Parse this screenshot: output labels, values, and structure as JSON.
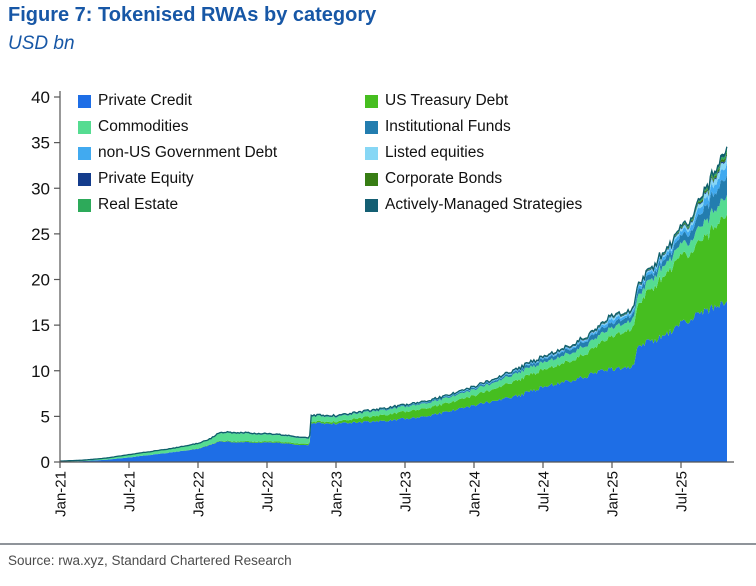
{
  "header": {
    "title": "Figure 7: Tokenised RWAs by category",
    "subtitle": "USD bn"
  },
  "footer": {
    "source": "Source: rwa.xyz, Standard Chartered Research"
  },
  "chart_data": {
    "type": "area",
    "stacked": true,
    "title": "Figure 7: Tokenised RWAs by category",
    "ylabel": "USD bn",
    "ylim": [
      0,
      40
    ],
    "yticks": [
      0,
      5,
      10,
      15,
      20,
      25,
      30,
      35,
      40
    ],
    "grid": false,
    "legend_position": "top-left-inside",
    "x_unit": "months_since_Jan-2021",
    "xtick_positions": [
      0,
      6,
      12,
      18,
      24,
      30,
      36,
      42,
      48,
      54
    ],
    "xtick_labels": [
      "Jan-21",
      "Jul-21",
      "Jan-22",
      "Jul-22",
      "Jan-23",
      "Jul-23",
      "Jan-24",
      "Jul-24",
      "Jan-25",
      "Jul-25"
    ],
    "x": [
      0,
      2,
      4,
      6,
      8,
      10,
      12,
      13,
      14,
      15,
      16,
      17,
      18,
      19,
      20,
      21,
      21.7,
      21.8,
      22,
      24,
      25,
      26,
      27,
      28,
      29,
      30,
      31,
      32,
      33,
      34,
      35,
      36,
      37,
      38,
      39,
      40,
      41,
      42,
      43,
      44,
      45,
      46,
      47,
      48,
      49,
      50,
      50.1,
      51,
      52,
      53,
      54,
      54.5,
      55,
      55.5,
      56,
      56.5,
      57,
      57.5,
      58
    ],
    "series": [
      {
        "name": "Private Credit",
        "color": "#1E6EE6",
        "values": [
          0.05,
          0.1,
          0.25,
          0.5,
          0.8,
          1.1,
          1.45,
          1.85,
          2.3,
          2.15,
          2.2,
          2.1,
          2.15,
          2.1,
          2.0,
          1.85,
          1.8,
          4.35,
          4.3,
          4.2,
          4.3,
          4.35,
          4.4,
          4.5,
          4.6,
          4.75,
          4.9,
          5.1,
          5.3,
          5.6,
          5.9,
          6.2,
          6.5,
          6.8,
          7.0,
          7.3,
          7.8,
          8.2,
          8.5,
          8.8,
          9.1,
          9.5,
          9.9,
          10.2,
          10.3,
          10.4,
          12.8,
          13.1,
          13.5,
          14.2,
          15.2,
          15.5,
          15.8,
          16.1,
          16.4,
          16.7,
          17.0,
          17.3,
          17.8
        ]
      },
      {
        "name": "US Treasury Debt",
        "color": "#46BE20",
        "values": [
          0,
          0,
          0,
          0,
          0,
          0.01,
          0.04,
          0.05,
          0.07,
          0.09,
          0.1,
          0.11,
          0.12,
          0.13,
          0.14,
          0.15,
          0.15,
          0.15,
          0.16,
          0.2,
          0.3,
          0.45,
          0.55,
          0.65,
          0.72,
          0.78,
          0.85,
          0.88,
          0.92,
          0.95,
          1.0,
          1.1,
          1.2,
          1.35,
          1.55,
          1.75,
          1.85,
          1.9,
          1.95,
          2.1,
          2.3,
          2.6,
          3.0,
          3.6,
          3.9,
          4.3,
          4.4,
          5.3,
          6.2,
          6.9,
          7.4,
          7.3,
          7.4,
          7.7,
          8.0,
          8.4,
          8.8,
          9.2,
          9.7
        ]
      },
      {
        "name": "Commodities",
        "color": "#55DC91",
        "values": [
          0.05,
          0.1,
          0.18,
          0.3,
          0.35,
          0.4,
          0.5,
          0.55,
          0.85,
          0.9,
          0.85,
          0.8,
          0.75,
          0.7,
          0.65,
          0.6,
          0.55,
          0.6,
          0.6,
          0.55,
          0.55,
          0.55,
          0.55,
          0.55,
          0.55,
          0.55,
          0.55,
          0.55,
          0.55,
          0.6,
          0.62,
          0.65,
          0.68,
          0.72,
          0.75,
          0.8,
          0.8,
          0.8,
          0.82,
          0.85,
          0.88,
          0.9,
          0.95,
          0.95,
          0.95,
          0.95,
          1.0,
          1.0,
          1.15,
          1.15,
          1.2,
          1.3,
          1.4,
          1.5,
          1.6,
          1.75,
          1.85,
          2.0,
          2.1
        ]
      },
      {
        "name": "Institutional Funds",
        "color": "#237DAF",
        "values": [
          0,
          0,
          0,
          0.01,
          0.02,
          0.03,
          0.04,
          0.04,
          0.05,
          0.05,
          0.05,
          0.05,
          0.05,
          0.05,
          0.05,
          0.05,
          0.05,
          0.06,
          0.06,
          0.06,
          0.06,
          0.07,
          0.07,
          0.08,
          0.09,
          0.1,
          0.1,
          0.11,
          0.12,
          0.13,
          0.14,
          0.15,
          0.16,
          0.18,
          0.2,
          0.25,
          0.3,
          0.35,
          0.4,
          0.45,
          0.5,
          0.55,
          0.55,
          0.5,
          0.55,
          0.55,
          0.55,
          0.55,
          0.6,
          0.7,
          0.85,
          0.95,
          1.1,
          1.3,
          1.5,
          1.7,
          1.9,
          2.05,
          2.2
        ]
      },
      {
        "name": "non-US Government Debt",
        "color": "#41AAF0",
        "values": [
          0,
          0,
          0,
          0,
          0,
          0,
          0.01,
          0.01,
          0.01,
          0.01,
          0.02,
          0.02,
          0.02,
          0.02,
          0.03,
          0.03,
          0.03,
          0.03,
          0.03,
          0.03,
          0.03,
          0.04,
          0.04,
          0.05,
          0.05,
          0.05,
          0.05,
          0.06,
          0.06,
          0.06,
          0.07,
          0.07,
          0.07,
          0.08,
          0.09,
          0.1,
          0.1,
          0.11,
          0.12,
          0.13,
          0.15,
          0.17,
          0.2,
          0.45,
          0.25,
          0.3,
          0.32,
          0.3,
          0.35,
          0.4,
          0.45,
          0.5,
          0.6,
          0.7,
          0.8,
          0.9,
          1.0,
          1.15,
          1.3
        ]
      },
      {
        "name": "Listed equities",
        "color": "#87D7F5",
        "values": [
          0,
          0,
          0,
          0,
          0,
          0,
          0,
          0,
          0,
          0,
          0,
          0,
          0,
          0,
          0,
          0,
          0,
          0,
          0,
          0.01,
          0.01,
          0.01,
          0.01,
          0.01,
          0.01,
          0.01,
          0.02,
          0.02,
          0.02,
          0.02,
          0.03,
          0.03,
          0.03,
          0.03,
          0.04,
          0.04,
          0.05,
          0.05,
          0.06,
          0.06,
          0.07,
          0.07,
          0.08,
          0.25,
          0.12,
          0.12,
          0.13,
          0.12,
          0.15,
          0.2,
          0.25,
          0.27,
          0.3,
          0.38,
          0.45,
          0.52,
          0.6,
          0.7,
          0.8
        ]
      },
      {
        "name": "Private Equity",
        "color": "#143C8C",
        "values": [
          0,
          0,
          0,
          0,
          0,
          0,
          0.01,
          0.01,
          0.02,
          0.02,
          0.02,
          0.02,
          0.02,
          0.02,
          0.02,
          0.02,
          0.02,
          0.02,
          0.02,
          0.02,
          0.02,
          0.02,
          0.02,
          0.02,
          0.02,
          0.02,
          0.02,
          0.02,
          0.02,
          0.03,
          0.03,
          0.03,
          0.03,
          0.03,
          0.04,
          0.04,
          0.04,
          0.04,
          0.05,
          0.05,
          0.05,
          0.06,
          0.06,
          0.06,
          0.06,
          0.07,
          0.07,
          0.07,
          0.08,
          0.08,
          0.09,
          0.09,
          0.1,
          0.11,
          0.12,
          0.13,
          0.13,
          0.14,
          0.15
        ]
      },
      {
        "name": "Corporate Bonds",
        "color": "#377D14",
        "values": [
          0,
          0,
          0,
          0,
          0,
          0,
          0,
          0,
          0,
          0,
          0,
          0,
          0,
          0,
          0,
          0,
          0,
          0,
          0,
          0,
          0,
          0,
          0,
          0.01,
          0.01,
          0.01,
          0.01,
          0.01,
          0.01,
          0.01,
          0.02,
          0.02,
          0.02,
          0.02,
          0.02,
          0.02,
          0.03,
          0.03,
          0.03,
          0.03,
          0.04,
          0.04,
          0.04,
          0.04,
          0.05,
          0.05,
          0.05,
          0.05,
          0.06,
          0.07,
          0.1,
          0.12,
          0.15,
          0.17,
          0.2,
          0.22,
          0.25,
          0.28,
          0.3
        ]
      },
      {
        "name": "Real Estate",
        "color": "#2DAA5A",
        "values": [
          0,
          0,
          0,
          0,
          0,
          0,
          0,
          0,
          0,
          0,
          0,
          0,
          0,
          0,
          0,
          0,
          0,
          0,
          0,
          0,
          0,
          0,
          0,
          0,
          0.01,
          0.01,
          0.01,
          0.01,
          0.01,
          0.01,
          0.01,
          0.01,
          0.02,
          0.02,
          0.02,
          0.02,
          0.02,
          0.02,
          0.03,
          0.03,
          0.03,
          0.03,
          0.04,
          0.04,
          0.04,
          0.04,
          0.05,
          0.05,
          0.05,
          0.06,
          0.08,
          0.09,
          0.1,
          0.12,
          0.15,
          0.17,
          0.2,
          0.22,
          0.25
        ]
      },
      {
        "name": "Actively-Managed Strategies",
        "color": "#145F73",
        "values": [
          0,
          0,
          0,
          0,
          0,
          0,
          0,
          0,
          0,
          0,
          0,
          0,
          0,
          0,
          0,
          0,
          0,
          0,
          0,
          0,
          0,
          0,
          0,
          0,
          0,
          0,
          0.01,
          0.01,
          0.01,
          0.01,
          0.01,
          0.01,
          0.02,
          0.02,
          0.02,
          0.02,
          0.02,
          0.02,
          0.03,
          0.03,
          0.04,
          0.04,
          0.05,
          0.05,
          0.05,
          0.05,
          0.05,
          0.06,
          0.06,
          0.07,
          0.1,
          0.11,
          0.15,
          0.17,
          0.2,
          0.22,
          0.25,
          0.28,
          0.3
        ]
      }
    ]
  }
}
